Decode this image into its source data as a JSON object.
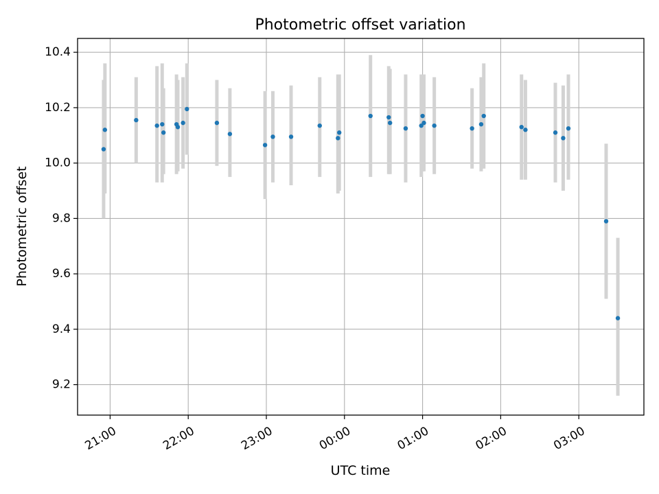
{
  "chart_data": {
    "type": "scatter",
    "title": "Photometric offset variation",
    "xlabel": "UTC time",
    "ylabel": "Photometric offset",
    "x_unit": "UTC time (HH:MM)",
    "xlim": [
      "20:35",
      "03:50"
    ],
    "ylim": [
      9.09,
      10.45
    ],
    "grid": true,
    "x_ticks": [
      "21:00",
      "22:00",
      "23:00",
      "00:00",
      "01:00",
      "02:00",
      "03:00"
    ],
    "y_ticks": [
      "9.2",
      "9.4",
      "9.6",
      "9.8",
      "10.0",
      "10.2",
      "10.4"
    ],
    "colors": {
      "point": "#1f77b4",
      "errorbar": "#d3d3d3",
      "grid": "#b0b0b0"
    },
    "series": [
      {
        "points": [
          {
            "x": "20:55",
            "y": 10.05,
            "low": 9.8,
            "high": 10.3
          },
          {
            "x": "20:56",
            "y": 10.12,
            "low": 9.89,
            "high": 10.36
          },
          {
            "x": "21:20",
            "y": 10.155,
            "low": 10.0,
            "high": 10.31
          },
          {
            "x": "21:36",
            "y": 10.135,
            "low": 9.93,
            "high": 10.35
          },
          {
            "x": "21:40",
            "y": 10.14,
            "low": 9.93,
            "high": 10.36
          },
          {
            "x": "21:41",
            "y": 10.11,
            "low": 9.96,
            "high": 10.27
          },
          {
            "x": "21:51",
            "y": 10.14,
            "low": 9.96,
            "high": 10.32
          },
          {
            "x": "21:52",
            "y": 10.13,
            "low": 9.97,
            "high": 10.3
          },
          {
            "x": "21:56",
            "y": 10.145,
            "low": 9.98,
            "high": 10.31
          },
          {
            "x": "21:59",
            "y": 10.195,
            "low": 10.03,
            "high": 10.36
          },
          {
            "x": "22:22",
            "y": 10.145,
            "low": 9.99,
            "high": 10.3
          },
          {
            "x": "22:32",
            "y": 10.105,
            "low": 9.95,
            "high": 10.27
          },
          {
            "x": "22:59",
            "y": 10.065,
            "low": 9.87,
            "high": 10.26
          },
          {
            "x": "23:05",
            "y": 10.095,
            "low": 9.93,
            "high": 10.26
          },
          {
            "x": "23:19",
            "y": 10.095,
            "low": 9.92,
            "high": 10.28
          },
          {
            "x": "23:41",
            "y": 10.135,
            "low": 9.95,
            "high": 10.31
          },
          {
            "x": "23:55",
            "y": 10.09,
            "low": 9.89,
            "high": 10.32
          },
          {
            "x": "23:56",
            "y": 10.11,
            "low": 9.9,
            "high": 10.32
          },
          {
            "x": "00:20",
            "y": 10.17,
            "low": 9.95,
            "high": 10.39
          },
          {
            "x": "00:34",
            "y": 10.165,
            "low": 9.96,
            "high": 10.35
          },
          {
            "x": "00:35",
            "y": 10.145,
            "low": 9.96,
            "high": 10.34
          },
          {
            "x": "00:47",
            "y": 10.125,
            "low": 9.93,
            "high": 10.32
          },
          {
            "x": "00:59",
            "y": 10.135,
            "low": 9.95,
            "high": 10.32
          },
          {
            "x": "01:00",
            "y": 10.17,
            "low": 9.97,
            "high": 10.32
          },
          {
            "x": "01:01",
            "y": 10.145,
            "low": 9.97,
            "high": 10.32
          },
          {
            "x": "01:09",
            "y": 10.135,
            "low": 9.96,
            "high": 10.31
          },
          {
            "x": "01:38",
            "y": 10.125,
            "low": 9.98,
            "high": 10.27
          },
          {
            "x": "01:45",
            "y": 10.14,
            "low": 9.97,
            "high": 10.31
          },
          {
            "x": "01:47",
            "y": 10.17,
            "low": 9.98,
            "high": 10.36
          },
          {
            "x": "02:16",
            "y": 10.13,
            "low": 9.94,
            "high": 10.32
          },
          {
            "x": "02:19",
            "y": 10.12,
            "low": 9.94,
            "high": 10.3
          },
          {
            "x": "02:42",
            "y": 10.11,
            "low": 9.93,
            "high": 10.29
          },
          {
            "x": "02:48",
            "y": 10.09,
            "low": 9.9,
            "high": 10.28
          },
          {
            "x": "02:52",
            "y": 10.125,
            "low": 9.94,
            "high": 10.32
          },
          {
            "x": "03:21",
            "y": 9.79,
            "low": 9.51,
            "high": 10.07
          },
          {
            "x": "03:30",
            "y": 9.44,
            "low": 9.16,
            "high": 9.73
          }
        ]
      }
    ]
  }
}
